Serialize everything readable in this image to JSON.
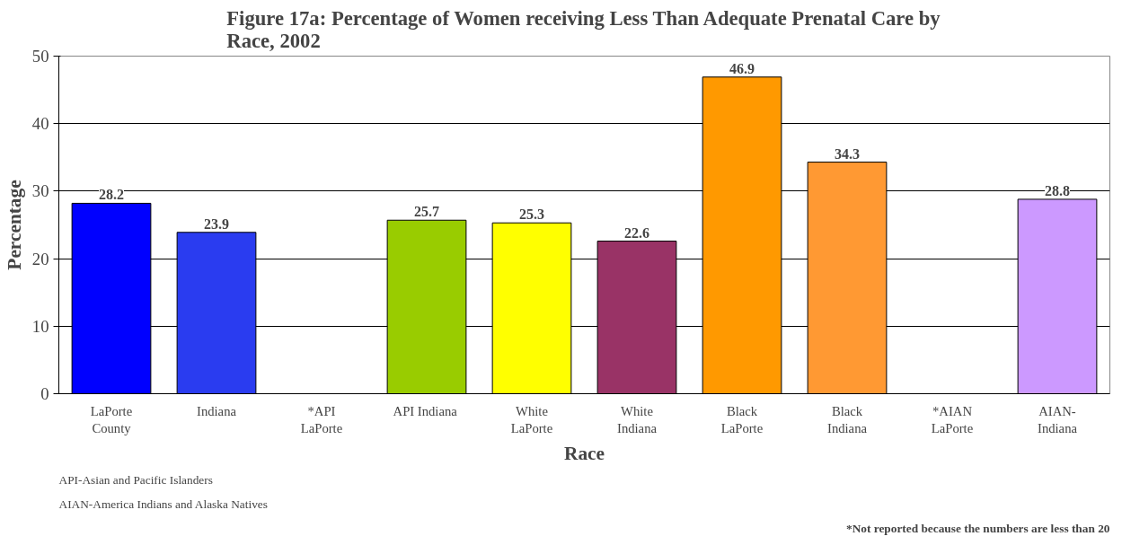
{
  "chart_data": {
    "type": "bar",
    "title": "Figure 17a: Percentage of Women receiving Less Than Adequate Prenatal Care by\nRace, 2002",
    "xlabel": "Race",
    "ylabel": "Percentage",
    "categories": [
      "LaPorte\nCounty",
      "Indiana",
      "*API\nLaPorte",
      "API  Indiana",
      "White\nLaPorte",
      "White\nIndiana",
      "Black\nLaPorte",
      "Black\nIndiana",
      "*AIAN\nLaPorte",
      "AIAN-\nIndiana"
    ],
    "values": [
      28.2,
      23.9,
      null,
      25.7,
      25.3,
      22.6,
      46.9,
      34.3,
      null,
      28.8
    ],
    "colors": [
      "#0000ff",
      "#2a3cf0",
      "#ffffff",
      "#99cc00",
      "#ffff00",
      "#993366",
      "#ff9900",
      "#ff9933",
      "#ffffff",
      "#cc99ff"
    ],
    "ylim": [
      0,
      50
    ],
    "yticks": [
      0,
      10,
      20,
      30,
      40,
      50
    ],
    "grid": "y",
    "data_labels": true,
    "annotations": [
      "API-Asian and Pacific Islanders",
      "AIAN-America Indians and Alaska Natives",
      "*Not reported because the numbers are less than 20"
    ]
  }
}
